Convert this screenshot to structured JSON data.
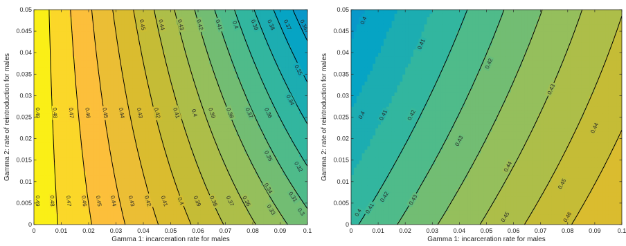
{
  "chart_data": [
    {
      "type": "heatmap",
      "subtype": "filled-contour",
      "title": "",
      "xlabel": "Gamma 1: incarceration rate for males",
      "ylabel": "Gamma 2: rate of reintroduction for males",
      "xlim": [
        0,
        0.1
      ],
      "ylim": [
        0,
        0.05
      ],
      "xticks": [
        "0",
        "0.01",
        "0.02",
        "0.03",
        "0.04",
        "0.05",
        "0.06",
        "0.07",
        "0.08",
        "0.09",
        "0.1"
      ],
      "yticks": [
        "0",
        "0.005",
        "0.01",
        "0.015",
        "0.02",
        "0.025",
        "0.03",
        "0.035",
        "0.04",
        "0.045",
        "0.05"
      ],
      "colormap": "parula",
      "color_range": [
        0.3,
        0.5
      ],
      "contour_levels": [
        0.31,
        0.32,
        0.33,
        0.34,
        0.35,
        0.36,
        0.37,
        0.38,
        0.39,
        0.4,
        0.41,
        0.42,
        0.43,
        0.44,
        0.45,
        0.46,
        0.47,
        0.48,
        0.49
      ],
      "contour_labels": [
        {
          "text": "0.49",
          "x": 0.0015,
          "y": 0.026
        },
        {
          "text": "0.48",
          "x": 0.0078,
          "y": 0.026
        },
        {
          "text": "0.47",
          "x": 0.0138,
          "y": 0.026
        },
        {
          "text": "0.46",
          "x": 0.0198,
          "y": 0.026
        },
        {
          "text": "0.45",
          "x": 0.0262,
          "y": 0.026
        },
        {
          "text": "0.44",
          "x": 0.0322,
          "y": 0.026
        },
        {
          "text": "0.43",
          "x": 0.0388,
          "y": 0.026
        },
        {
          "text": "0.42",
          "x": 0.0452,
          "y": 0.026
        },
        {
          "text": "0.41",
          "x": 0.0522,
          "y": 0.026
        },
        {
          "text": "0.4",
          "x": 0.0588,
          "y": 0.026
        },
        {
          "text": "0.39",
          "x": 0.0652,
          "y": 0.026
        },
        {
          "text": "0.38",
          "x": 0.0718,
          "y": 0.026
        },
        {
          "text": "0.37",
          "x": 0.0788,
          "y": 0.026
        },
        {
          "text": "0.36",
          "x": 0.0858,
          "y": 0.026
        },
        {
          "text": "0.34",
          "x": 0.0938,
          "y": 0.029
        },
        {
          "text": "0.45",
          "x": 0.0398,
          "y": 0.0465
        },
        {
          "text": "0.44",
          "x": 0.0468,
          "y": 0.0465
        },
        {
          "text": "0.43",
          "x": 0.0538,
          "y": 0.0465
        },
        {
          "text": "0.42",
          "x": 0.0608,
          "y": 0.0465
        },
        {
          "text": "0.41",
          "x": 0.0678,
          "y": 0.0465
        },
        {
          "text": "0.4",
          "x": 0.0738,
          "y": 0.0465
        },
        {
          "text": "0.39",
          "x": 0.0808,
          "y": 0.0465
        },
        {
          "text": "0.38",
          "x": 0.0868,
          "y": 0.0465
        },
        {
          "text": "0.37",
          "x": 0.0928,
          "y": 0.0465
        },
        {
          "text": "0.36",
          "x": 0.0988,
          "y": 0.0465
        },
        {
          "text": "0.35",
          "x": 0.0968,
          "y": 0.036
        },
        {
          "text": "0.35",
          "x": 0.0858,
          "y": 0.016
        },
        {
          "text": "0.32",
          "x": 0.0968,
          "y": 0.0135
        },
        {
          "text": "0.49",
          "x": 0.0015,
          "y": 0.0055
        },
        {
          "text": "0.48",
          "x": 0.0068,
          "y": 0.0055
        },
        {
          "text": "0.47",
          "x": 0.0128,
          "y": 0.0055
        },
        {
          "text": "0.46",
          "x": 0.0185,
          "y": 0.0055
        },
        {
          "text": "0.45",
          "x": 0.0238,
          "y": 0.0055
        },
        {
          "text": "0.44",
          "x": 0.0292,
          "y": 0.0055
        },
        {
          "text": "0.43",
          "x": 0.0358,
          "y": 0.0055
        },
        {
          "text": "0.42",
          "x": 0.0418,
          "y": 0.0055
        },
        {
          "text": "0.41",
          "x": 0.0478,
          "y": 0.0055
        },
        {
          "text": "0.4",
          "x": 0.0538,
          "y": 0.0055
        },
        {
          "text": "0.39",
          "x": 0.0598,
          "y": 0.0055
        },
        {
          "text": "0.38",
          "x": 0.0658,
          "y": 0.0055
        },
        {
          "text": "0.37",
          "x": 0.0718,
          "y": 0.0055
        },
        {
          "text": "0.36",
          "x": 0.0778,
          "y": 0.0055
        },
        {
          "text": "0.34",
          "x": 0.0858,
          "y": 0.0085
        },
        {
          "text": "0.33",
          "x": 0.0868,
          "y": 0.0035
        },
        {
          "text": "0.31",
          "x": 0.0948,
          "y": 0.0065
        },
        {
          "text": "0.3",
          "x": 0.0978,
          "y": 0.003
        }
      ]
    },
    {
      "type": "heatmap",
      "subtype": "filled-contour",
      "title": "",
      "xlabel": "Gamma 1: incarceration rate for males",
      "ylabel": "Gamma 2: rate of reintroduction for males",
      "xlim": [
        0,
        0.1
      ],
      "ylim": [
        0,
        0.05
      ],
      "xticks": [
        "0",
        "0.01",
        "0.02",
        "0.03",
        "0.04",
        "0.05",
        "0.06",
        "0.07",
        "0.08",
        "0.09",
        "0.1"
      ],
      "yticks": [
        "0",
        "0.005",
        "0.01",
        "0.015",
        "0.02",
        "0.025",
        "0.03",
        "0.035",
        "0.04",
        "0.045",
        "0.05"
      ],
      "colormap": "parula",
      "color_range": [
        0.3,
        0.5
      ],
      "contour_levels": [
        0.4,
        0.41,
        0.42,
        0.43,
        0.44,
        0.45,
        0.46
      ],
      "contour_labels": [
        {
          "text": "0.4",
          "x": 0.0045,
          "y": 0.0475
        },
        {
          "text": "0.41",
          "x": 0.0258,
          "y": 0.042
        },
        {
          "text": "0.42",
          "x": 0.0508,
          "y": 0.0375
        },
        {
          "text": "0.43",
          "x": 0.0738,
          "y": 0.0315
        },
        {
          "text": "0.44",
          "x": 0.0898,
          "y": 0.0225
        },
        {
          "text": "0.4",
          "x": 0.0038,
          "y": 0.0255
        },
        {
          "text": "0.41",
          "x": 0.0118,
          "y": 0.0255
        },
        {
          "text": "0.42",
          "x": 0.0222,
          "y": 0.0255
        },
        {
          "text": "0.43",
          "x": 0.0398,
          "y": 0.0195
        },
        {
          "text": "0.44",
          "x": 0.0578,
          "y": 0.0135
        },
        {
          "text": "0.45",
          "x": 0.0778,
          "y": 0.0095
        },
        {
          "text": "0.4",
          "x": 0.0025,
          "y": 0.0028
        },
        {
          "text": "0.41",
          "x": 0.0068,
          "y": 0.0038
        },
        {
          "text": "0.42",
          "x": 0.0122,
          "y": 0.0065
        },
        {
          "text": "0.43",
          "x": 0.0228,
          "y": 0.0058
        },
        {
          "text": "0.45",
          "x": 0.0568,
          "y": 0.0018
        },
        {
          "text": "0.46",
          "x": 0.0798,
          "y": 0.0018
        }
      ]
    }
  ]
}
